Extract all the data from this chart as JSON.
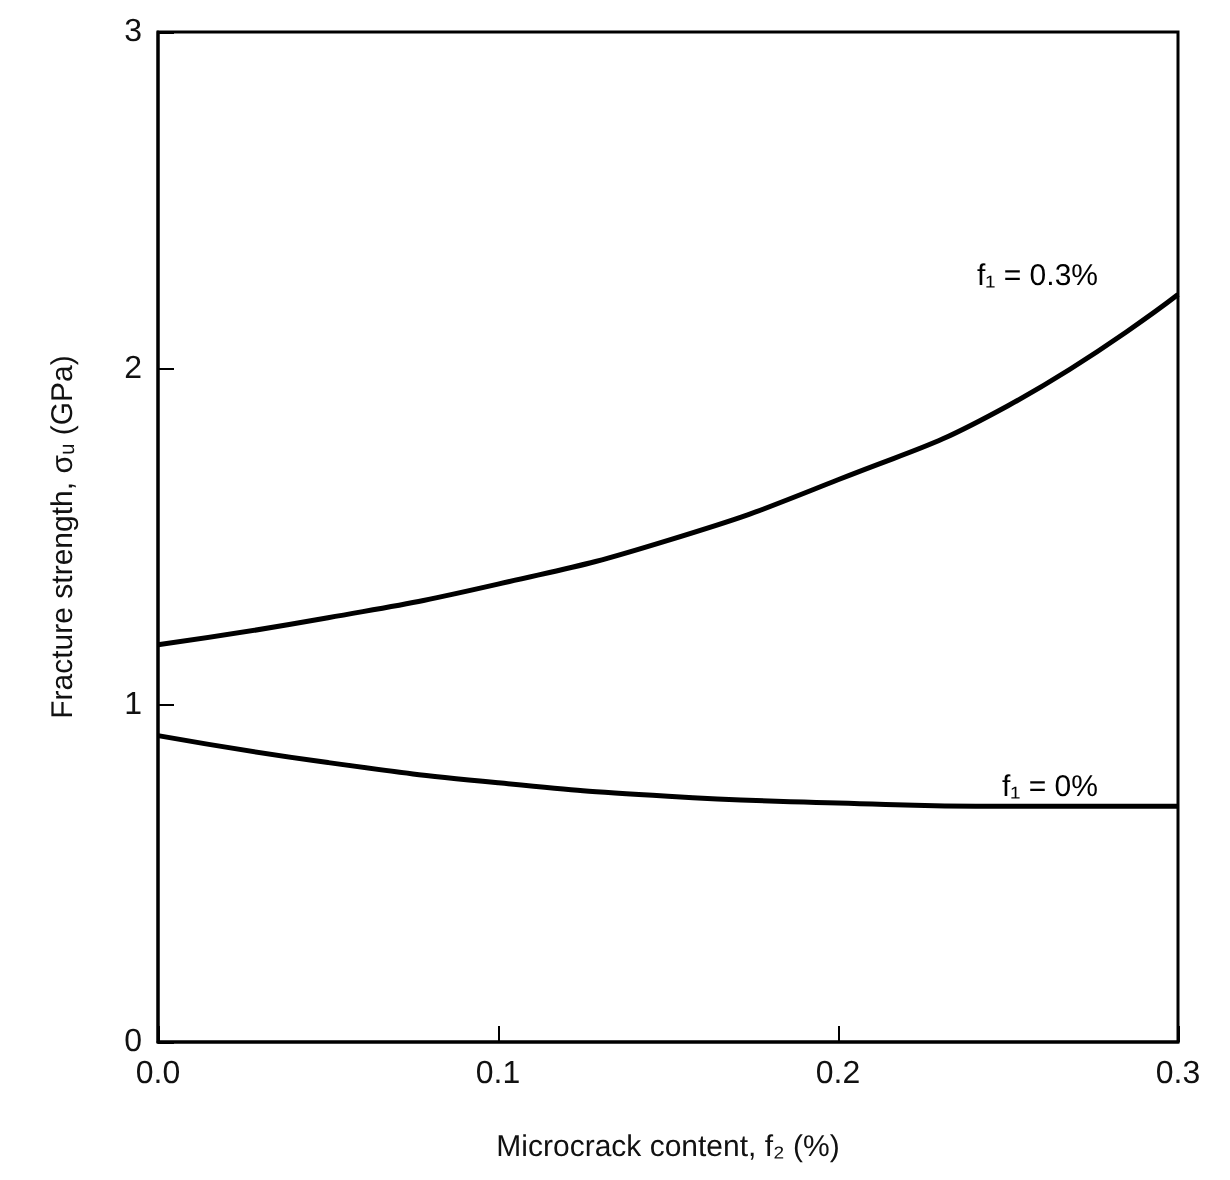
{
  "chart_data": {
    "type": "line",
    "xlabel": "Microcrack content, f₂ (%)",
    "ylabel": "Fracture strength, σᵤ (GPa)",
    "x": [
      0,
      0.05,
      0.1,
      0.15,
      0.2,
      0.25,
      0.3
    ],
    "series": [
      {
        "name": "f₁ = 0.3%",
        "color": "#000000",
        "values": [
          1.18,
          1.26,
          1.36,
          1.49,
          1.67,
          1.89,
          2.22
        ]
      },
      {
        "name": "f₁ = 0%",
        "color": "#000000",
        "values": [
          0.91,
          0.83,
          0.77,
          0.73,
          0.71,
          0.7,
          0.7
        ]
      }
    ],
    "xlim": [
      0,
      0.3
    ],
    "xticks": [
      {
        "value": 0,
        "label": "0.0"
      },
      {
        "value": 0.1,
        "label": "0.1"
      },
      {
        "value": 0.2,
        "label": "0.2"
      },
      {
        "value": 0.3,
        "label": "0.3"
      }
    ],
    "ylim": [
      0,
      3
    ],
    "yticks": [
      0,
      1,
      2,
      3
    ],
    "grid": false,
    "marker": "none",
    "line_style": "solid"
  }
}
